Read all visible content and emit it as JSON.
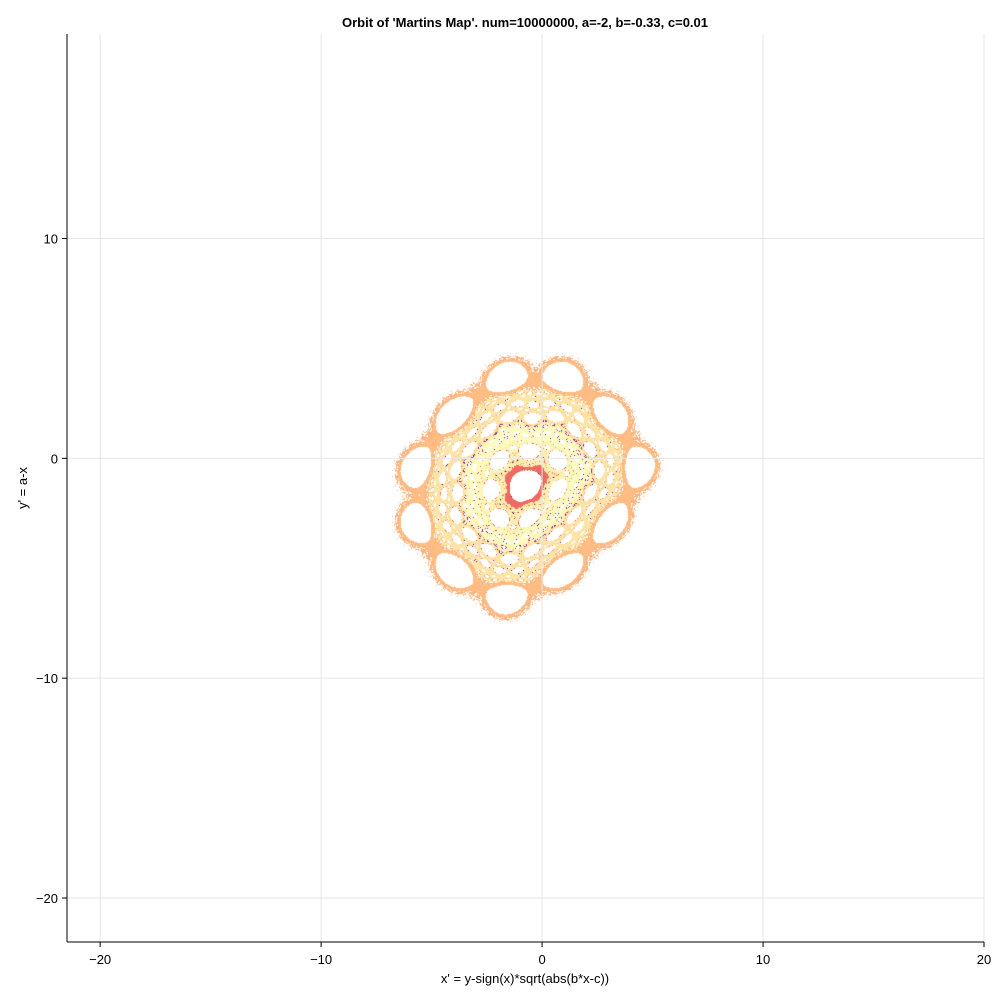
{
  "chart_data": {
    "type": "scatter",
    "title": "Orbit of 'Martins Map'. num=10000000, a=-2, b=-0.33, c=0.01",
    "xlabel": "x' = y-sign(x)*sqrt(abs(b*x-c))",
    "ylabel": "y' = a-x",
    "xlim": [
      -21.5,
      20
    ],
    "ylim": [
      -22,
      19.3
    ],
    "xticks": [
      -20,
      -10,
      0,
      10,
      20
    ],
    "yticks": [
      -20,
      -10,
      0,
      10
    ],
    "xtick_labels": [
      "−20",
      "−10",
      "0",
      "10",
      "20"
    ],
    "ytick_labels": [
      "−20",
      "−10",
      "0",
      "10"
    ],
    "grid": true,
    "colormap": "magma",
    "color_encoding": "iteration index",
    "parameters": {
      "num": 10000000,
      "a": -2,
      "b": -0.33,
      "c": 0.01
    },
    "colors": {
      "grid": "#e6e6e6",
      "frame": "#000000",
      "background": "#ffffff"
    }
  }
}
